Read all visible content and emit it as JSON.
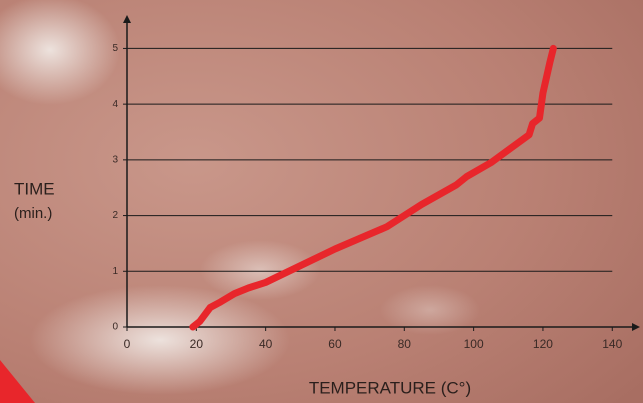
{
  "chart_data": {
    "type": "line",
    "y_label_line1": "TIME",
    "y_label_line2": "(min.)",
    "x_label": "TEMPERATURE (C°)",
    "x": [
      19,
      21,
      24,
      27,
      31,
      35,
      40,
      45,
      60,
      75,
      85,
      95,
      98,
      105,
      116,
      117,
      119,
      120,
      122,
      123
    ],
    "values": [
      0,
      0.1,
      0.35,
      0.45,
      0.6,
      0.7,
      0.8,
      0.95,
      1.4,
      1.8,
      2.2,
      2.55,
      2.7,
      2.95,
      3.45,
      3.65,
      3.75,
      4.2,
      4.75,
      5
    ],
    "color": "#e8262b",
    "xlim": [
      0,
      148
    ],
    "ylim": [
      0,
      5.6
    ],
    "xticks": [
      0,
      20,
      40,
      60,
      80,
      100,
      120,
      140
    ],
    "yticks": [
      0,
      1,
      2,
      3,
      4,
      5
    ],
    "grid": true
  }
}
